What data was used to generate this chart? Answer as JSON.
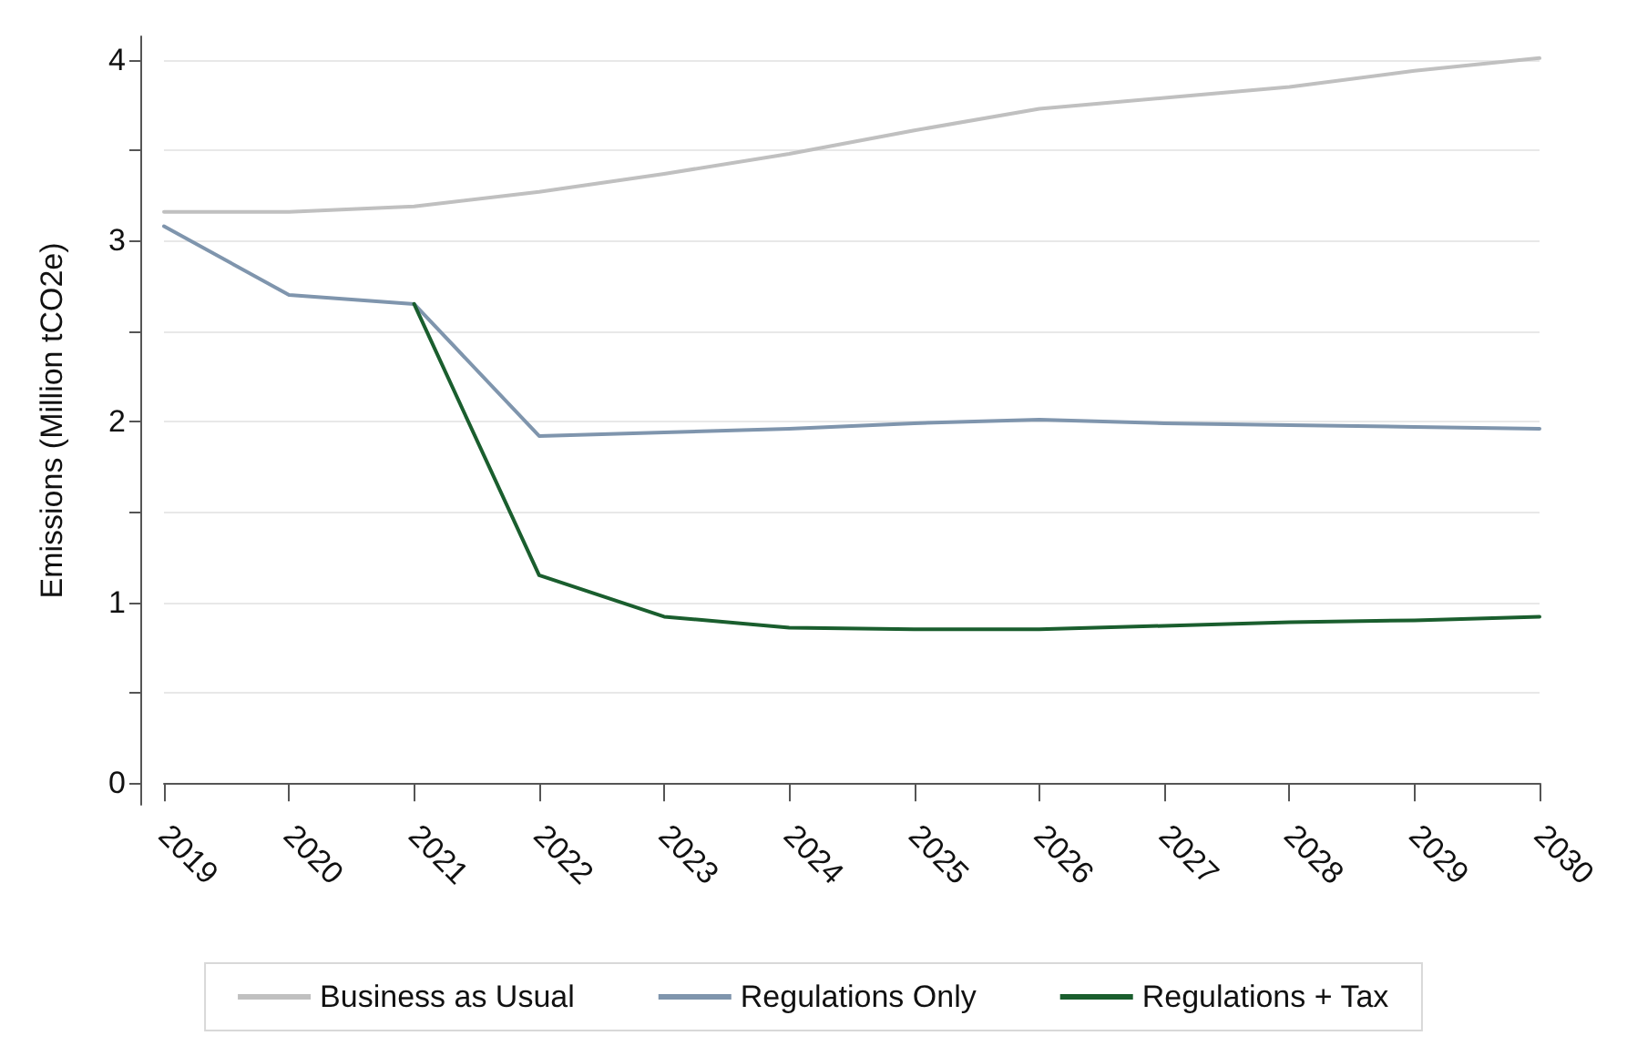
{
  "chart_data": {
    "type": "line",
    "ylabel": "Emissions (Million tCO2e)",
    "categories": [
      "2019",
      "2020",
      "2021",
      "2022",
      "2023",
      "2024",
      "2025",
      "2026",
      "2027",
      "2028",
      "2029",
      "2030"
    ],
    "series": [
      {
        "name": "Business as Usual",
        "color": "#c0c0c0",
        "values": [
          3.16,
          3.16,
          3.19,
          3.27,
          3.37,
          3.48,
          3.61,
          3.73,
          3.79,
          3.85,
          3.94,
          4.01
        ]
      },
      {
        "name": "Regulations Only",
        "color": "#7f95ad",
        "values": [
          3.08,
          2.7,
          2.65,
          1.92,
          1.94,
          1.96,
          1.99,
          2.01,
          1.99,
          1.98,
          1.97,
          1.96
        ]
      },
      {
        "name": "Regulations + Tax",
        "color": "#1a5e2e",
        "values": [
          null,
          null,
          2.65,
          1.15,
          0.92,
          0.86,
          0.85,
          0.85,
          0.87,
          0.89,
          0.9,
          0.92
        ]
      }
    ],
    "ylim": [
      -0.12,
      4.13
    ],
    "yticks": [
      0,
      {
        "value": 0.5,
        "label": null
      },
      1,
      {
        "value": 1.5,
        "label": null
      },
      2,
      {
        "value": 2.5,
        "label": null
      },
      3,
      {
        "value": 3.5,
        "label": null
      },
      4
    ],
    "grid": "y",
    "legend": "bottom",
    "marker": "none",
    "line_style": "solid"
  }
}
